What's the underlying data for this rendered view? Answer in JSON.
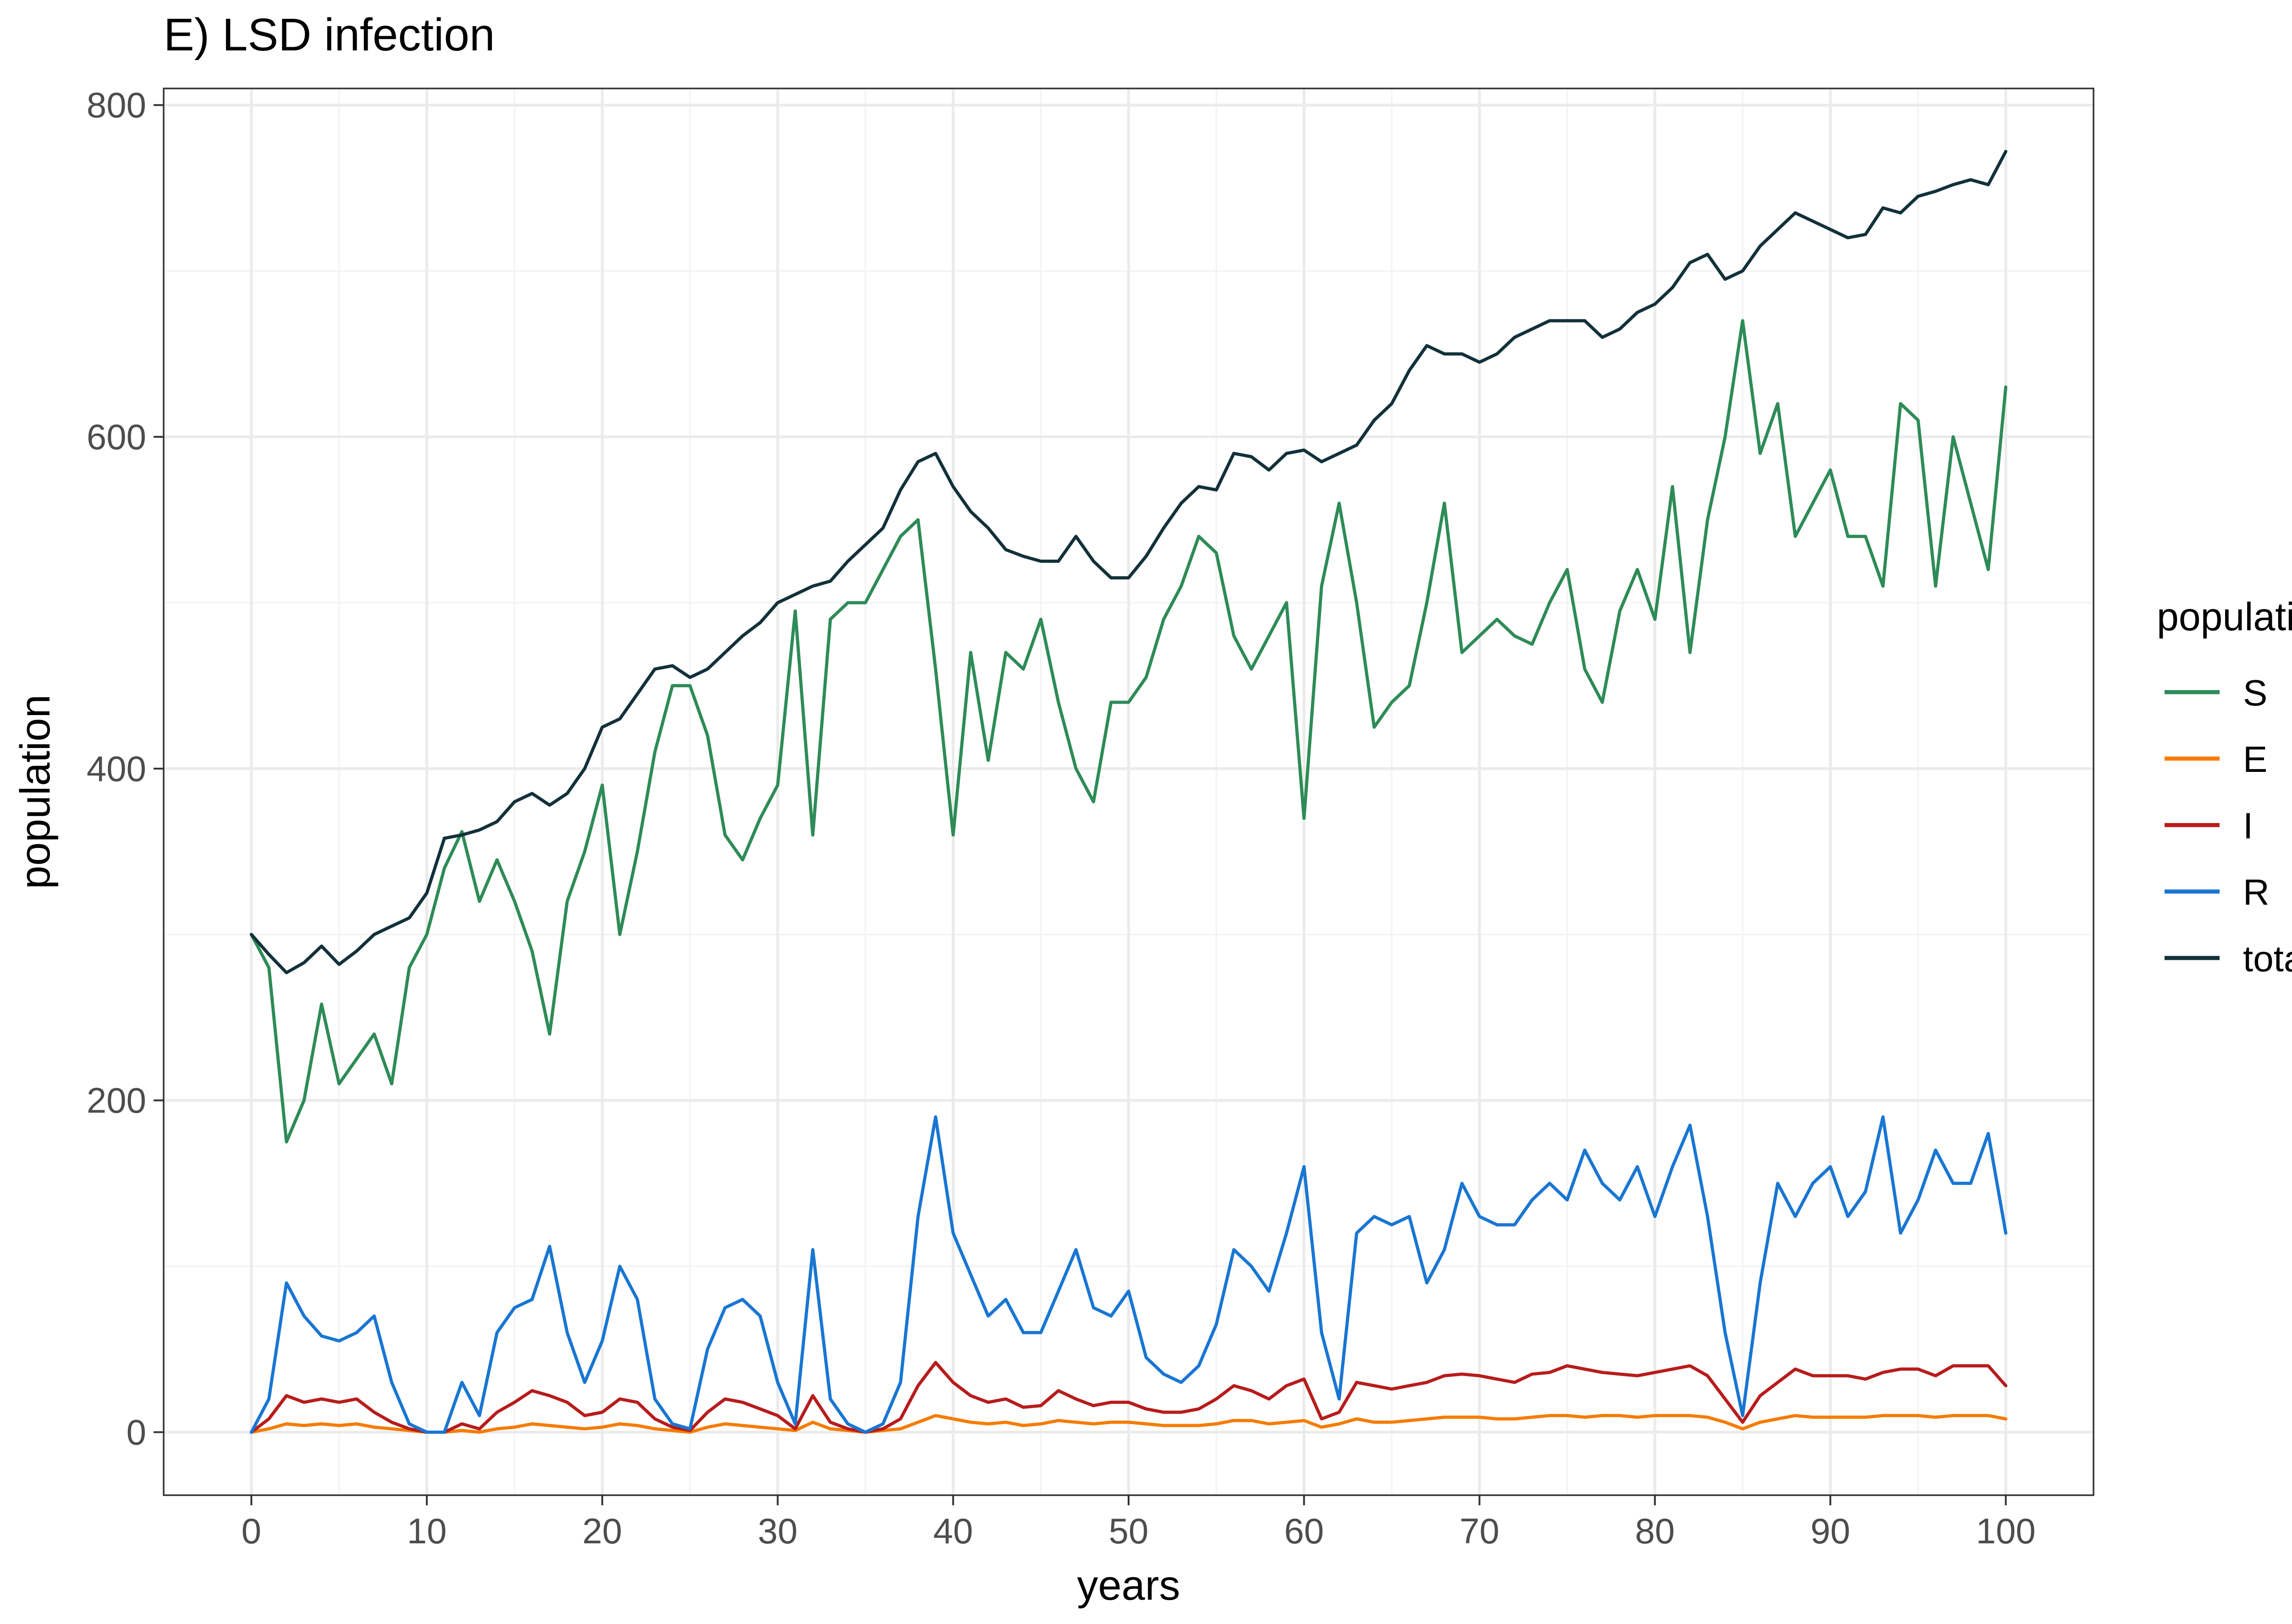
{
  "chart_data": {
    "type": "line",
    "title": "E) LSD infection",
    "xlabel": "years",
    "ylabel": "population",
    "xlim": [
      -5,
      105
    ],
    "ylim": [
      -38,
      810
    ],
    "x_major_ticks": [
      0,
      10,
      20,
      30,
      40,
      50,
      60,
      70,
      80,
      90,
      100
    ],
    "y_major_ticks": [
      0,
      200,
      400,
      600,
      800
    ],
    "legend_position": "right",
    "legend": {
      "title": "population",
      "entries": [
        {
          "label": "S",
          "color": "#2E8B57"
        },
        {
          "label": "E",
          "color": "#F57C00"
        },
        {
          "label": "I",
          "color": "#B71C1C"
        },
        {
          "label": "R",
          "color": "#1976D2"
        },
        {
          "label": "total",
          "color": "#12313A"
        }
      ]
    },
    "x": [
      0,
      1,
      2,
      3,
      4,
      5,
      6,
      7,
      8,
      9,
      10,
      11,
      12,
      13,
      14,
      15,
      16,
      17,
      18,
      19,
      20,
      21,
      22,
      23,
      24,
      25,
      26,
      27,
      28,
      29,
      30,
      31,
      32,
      33,
      34,
      35,
      36,
      37,
      38,
      39,
      40,
      41,
      42,
      43,
      44,
      45,
      46,
      47,
      48,
      49,
      50,
      51,
      52,
      53,
      54,
      55,
      56,
      57,
      58,
      59,
      60,
      61,
      62,
      63,
      64,
      65,
      66,
      67,
      68,
      69,
      70,
      71,
      72,
      73,
      74,
      75,
      76,
      77,
      78,
      79,
      80,
      81,
      82,
      83,
      84,
      85,
      86,
      87,
      88,
      89,
      90,
      91,
      92,
      93,
      94,
      95,
      96,
      97,
      98,
      99,
      100
    ],
    "series": [
      {
        "name": "S",
        "color": "#2E8B57",
        "values": [
          300,
          280,
          175,
          200,
          258,
          210,
          225,
          240,
          210,
          280,
          300,
          340,
          362,
          320,
          345,
          320,
          290,
          240,
          320,
          350,
          390,
          300,
          350,
          410,
          450,
          450,
          420,
          360,
          345,
          370,
          390,
          495,
          360,
          490,
          500,
          500,
          520,
          540,
          550,
          460,
          360,
          470,
          405,
          470,
          460,
          490,
          440,
          400,
          380,
          440,
          440,
          455,
          490,
          510,
          540,
          530,
          480,
          460,
          480,
          500,
          370,
          510,
          560,
          500,
          425,
          440,
          450,
          500,
          560,
          470,
          480,
          490,
          480,
          475,
          500,
          520,
          460,
          440,
          495,
          520,
          490,
          570,
          470,
          550,
          600,
          670,
          590,
          620,
          540,
          560,
          580,
          540,
          540,
          510,
          620,
          610,
          510,
          600,
          560,
          520,
          630
        ]
      },
      {
        "name": "E",
        "color": "#F57C00",
        "values": [
          0,
          2,
          5,
          4,
          5,
          4,
          5,
          3,
          2,
          1,
          0,
          0,
          1,
          0,
          2,
          3,
          5,
          4,
          3,
          2,
          3,
          5,
          4,
          2,
          1,
          0,
          3,
          5,
          4,
          3,
          2,
          1,
          6,
          2,
          1,
          0,
          1,
          2,
          6,
          10,
          8,
          6,
          5,
          6,
          4,
          5,
          7,
          6,
          5,
          6,
          6,
          5,
          4,
          4,
          4,
          5,
          7,
          7,
          5,
          6,
          7,
          3,
          5,
          8,
          6,
          6,
          7,
          8,
          9,
          9,
          9,
          8,
          8,
          9,
          10,
          10,
          9,
          10,
          10,
          9,
          10,
          10,
          10,
          9,
          6,
          2,
          6,
          8,
          10,
          9,
          9,
          9,
          9,
          10,
          10,
          10,
          9,
          10,
          10,
          10,
          8
        ]
      },
      {
        "name": "I",
        "color": "#B71C1C",
        "values": [
          0,
          8,
          22,
          18,
          20,
          18,
          20,
          12,
          6,
          2,
          0,
          0,
          5,
          2,
          12,
          18,
          25,
          22,
          18,
          10,
          12,
          20,
          18,
          8,
          3,
          1,
          12,
          20,
          18,
          14,
          10,
          2,
          22,
          6,
          2,
          0,
          2,
          8,
          28,
          42,
          30,
          22,
          18,
          20,
          15,
          16,
          25,
          20,
          16,
          18,
          18,
          14,
          12,
          12,
          14,
          20,
          28,
          25,
          20,
          28,
          32,
          8,
          12,
          30,
          28,
          26,
          28,
          30,
          34,
          35,
          34,
          32,
          30,
          35,
          36,
          40,
          38,
          36,
          35,
          34,
          36,
          38,
          40,
          34,
          20,
          6,
          22,
          30,
          38,
          34,
          34,
          34,
          32,
          36,
          38,
          38,
          34,
          40,
          40,
          40,
          28
        ]
      },
      {
        "name": "R",
        "color": "#1976D2",
        "values": [
          0,
          20,
          90,
          70,
          58,
          55,
          60,
          70,
          30,
          5,
          0,
          0,
          30,
          10,
          60,
          75,
          80,
          112,
          60,
          30,
          55,
          100,
          80,
          20,
          5,
          2,
          50,
          75,
          80,
          70,
          30,
          5,
          110,
          20,
          5,
          0,
          5,
          30,
          130,
          190,
          120,
          95,
          70,
          80,
          60,
          60,
          85,
          110,
          75,
          70,
          85,
          45,
          35,
          30,
          40,
          65,
          110,
          100,
          85,
          120,
          160,
          60,
          20,
          120,
          130,
          125,
          130,
          90,
          110,
          150,
          130,
          125,
          125,
          140,
          150,
          140,
          170,
          150,
          140,
          160,
          130,
          160,
          185,
          130,
          60,
          10,
          90,
          150,
          130,
          150,
          160,
          130,
          145,
          190,
          120,
          140,
          170,
          150,
          150,
          180,
          120
        ]
      },
      {
        "name": "total",
        "color": "#12313A",
        "values": [
          300,
          288,
          277,
          283,
          293,
          282,
          290,
          300,
          305,
          310,
          325,
          358,
          360,
          363,
          368,
          380,
          385,
          378,
          385,
          400,
          425,
          430,
          445,
          460,
          462,
          455,
          460,
          470,
          480,
          488,
          500,
          505,
          510,
          513,
          525,
          535,
          545,
          568,
          585,
          590,
          570,
          555,
          545,
          532,
          528,
          525,
          525,
          540,
          525,
          515,
          515,
          528,
          545,
          560,
          570,
          568,
          590,
          588,
          580,
          590,
          592,
          585,
          590,
          595,
          610,
          620,
          640,
          655,
          650,
          650,
          645,
          650,
          660,
          665,
          670,
          670,
          670,
          660,
          665,
          675,
          680,
          690,
          705,
          710,
          695,
          700,
          715,
          725,
          735,
          730,
          725,
          720,
          722,
          738,
          735,
          745,
          748,
          752,
          755,
          752,
          772
        ]
      }
    ]
  }
}
